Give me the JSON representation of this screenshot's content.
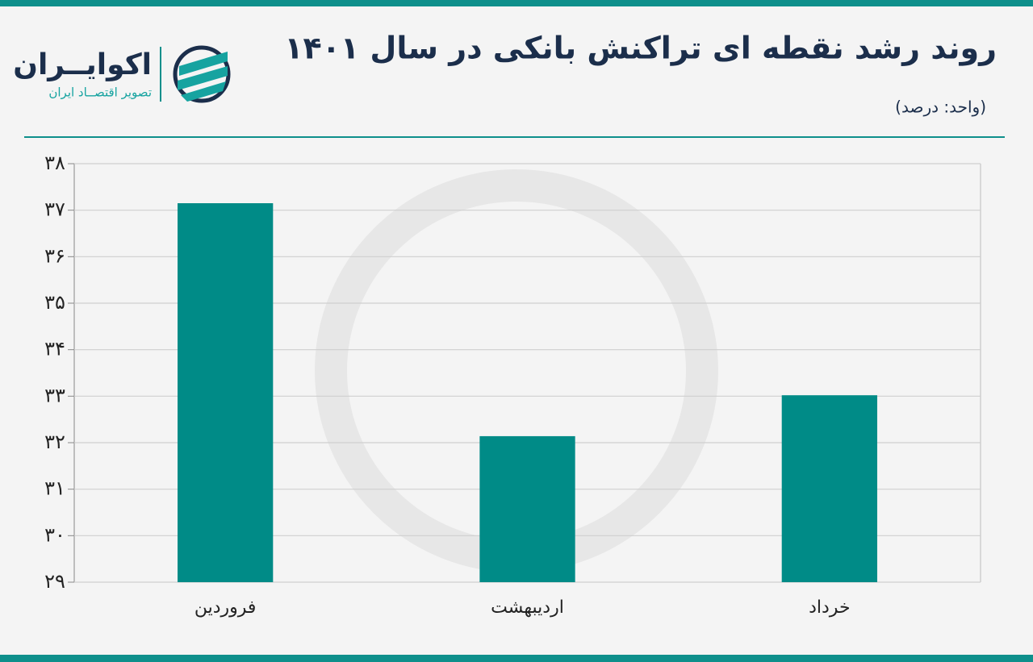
{
  "logo": {
    "name": "اکوایــران",
    "tagline": "تصویر اقتصــاد ایران"
  },
  "chart_data": {
    "type": "bar",
    "title": "روند رشد نقطه ای تراکنش بانکی در سال ۱۴۰۱",
    "subtitle": "(واحد: درصد)",
    "categories": [
      "فروردین",
      "اردیبهشت",
      "خرداد"
    ],
    "values": [
      37.15,
      32.14,
      33.02
    ],
    "color": "#008b87",
    "ylim": [
      29,
      38
    ],
    "yticks": [
      {
        "value": 29,
        "label": "۲۹"
      },
      {
        "value": 30,
        "label": "۳۰"
      },
      {
        "value": 31,
        "label": "۳۱"
      },
      {
        "value": 32,
        "label": "۳۲"
      },
      {
        "value": 33,
        "label": "۳۳"
      },
      {
        "value": 34,
        "label": "۳۴"
      },
      {
        "value": 35,
        "label": "۳۵"
      },
      {
        "value": 36,
        "label": "۳۶"
      },
      {
        "value": 37,
        "label": "۳۷"
      },
      {
        "value": 38,
        "label": "۳۸"
      }
    ],
    "grid": true
  }
}
